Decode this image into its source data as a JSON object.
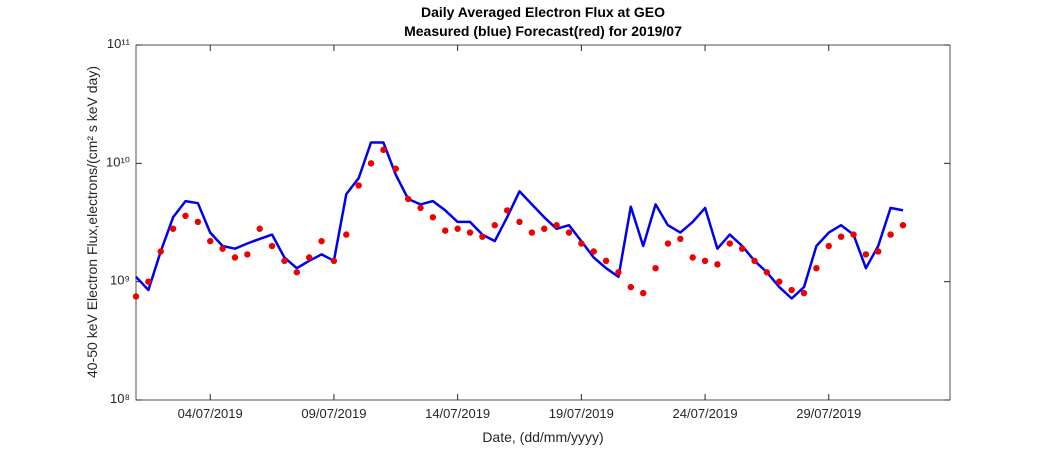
{
  "chart_data": {
    "type": "line",
    "title": "Daily Averaged Electron Flux at GEO",
    "subtitle": "Measured (blue) Forecast(red) for 2019/07",
    "xlabel": "Date, (dd/mm/yyyy)",
    "ylabel": "40-50 keV Electron Flux,electrons/(cm² s keV day)",
    "yscale": "log",
    "xlim": [
      1,
      33.9
    ],
    "ylim": [
      100000000.0,
      100000000000.0
    ],
    "xticks": [
      {
        "value": 4,
        "label": "04/07/2019"
      },
      {
        "value": 9,
        "label": "09/07/2019"
      },
      {
        "value": 14,
        "label": "14/07/2019"
      },
      {
        "value": 19,
        "label": "19/07/2019"
      },
      {
        "value": 24,
        "label": "24/07/2019"
      },
      {
        "value": 29,
        "label": "29/07/2019"
      }
    ],
    "yticks": [
      {
        "value": 100000000.0,
        "label": "10⁸"
      },
      {
        "value": 1000000000.0,
        "label": "10⁹"
      },
      {
        "value": 10000000000.0,
        "label": "10¹⁰"
      },
      {
        "value": 100000000000.0,
        "label": "10¹¹"
      }
    ],
    "x": [
      1,
      1.5,
      2,
      2.5,
      3,
      3.5,
      4,
      4.5,
      5,
      5.5,
      6,
      6.5,
      7,
      7.5,
      8,
      8.5,
      9,
      9.5,
      10,
      10.5,
      11,
      11.5,
      12,
      12.5,
      13,
      13.5,
      14,
      14.5,
      15,
      15.5,
      16,
      16.5,
      17,
      17.5,
      18,
      18.5,
      19,
      19.5,
      20,
      20.5,
      21,
      21.5,
      22,
      22.5,
      23,
      23.5,
      24,
      24.5,
      25,
      25.5,
      26,
      26.5,
      27,
      27.5,
      28,
      28.5,
      29,
      29.5,
      30,
      30.5,
      31,
      31.5,
      32
    ],
    "series": [
      {
        "style": "line",
        "color": "#0000ee",
        "values": [
          1100000000.0,
          850000000.0,
          1800000000.0,
          3500000000.0,
          4800000000.0,
          4600000000.0,
          2600000000.0,
          2000000000.0,
          1900000000.0,
          2100000000.0,
          2300000000.0,
          2500000000.0,
          1600000000.0,
          1300000000.0,
          1500000000.0,
          1700000000.0,
          1500000000.0,
          5500000000.0,
          7500000000.0,
          15000000000.0,
          15000000000.0,
          8000000000.0,
          5000000000.0,
          4500000000.0,
          4800000000.0,
          4000000000.0,
          3200000000.0,
          3200000000.0,
          2500000000.0,
          2200000000.0,
          3500000000.0,
          5800000000.0,
          4500000000.0,
          3500000000.0,
          2800000000.0,
          3000000000.0,
          2200000000.0,
          1600000000.0,
          1300000000.0,
          1100000000.0,
          4300000000.0,
          2000000000.0,
          4500000000.0,
          3000000000.0,
          2600000000.0,
          3200000000.0,
          4200000000.0,
          1900000000.0,
          2500000000.0,
          2000000000.0,
          1500000000.0,
          1200000000.0,
          900000000.0,
          720000000.0,
          900000000.0,
          2000000000.0,
          2600000000.0,
          3000000000.0,
          2500000000.0,
          1300000000.0,
          2000000000.0,
          4200000000.0,
          4000000000.0
        ]
      },
      {
        "style": "dots",
        "color": "#ee0000",
        "values": [
          750000000.0,
          1000000000.0,
          1800000000.0,
          2800000000.0,
          3600000000.0,
          3200000000.0,
          2200000000.0,
          1900000000.0,
          1600000000.0,
          1700000000.0,
          2800000000.0,
          2000000000.0,
          1500000000.0,
          1200000000.0,
          1600000000.0,
          2200000000.0,
          1500000000.0,
          2500000000.0,
          6500000000.0,
          10000000000.0,
          13000000000.0,
          9000000000.0,
          5000000000.0,
          4200000000.0,
          3500000000.0,
          2700000000.0,
          2800000000.0,
          2600000000.0,
          2400000000.0,
          3000000000.0,
          4000000000.0,
          3200000000.0,
          2600000000.0,
          2800000000.0,
          3000000000.0,
          2600000000.0,
          2100000000.0,
          1800000000.0,
          1500000000.0,
          1200000000.0,
          900000000.0,
          800000000.0,
          1300000000.0,
          2100000000.0,
          2300000000.0,
          1600000000.0,
          1500000000.0,
          1400000000.0,
          2100000000.0,
          1900000000.0,
          1500000000.0,
          1200000000.0,
          1000000000.0,
          850000000.0,
          800000000.0,
          1300000000.0,
          2000000000.0,
          2400000000.0,
          2500000000.0,
          1700000000.0,
          1800000000.0,
          2500000000.0,
          3000000000.0
        ]
      }
    ]
  }
}
